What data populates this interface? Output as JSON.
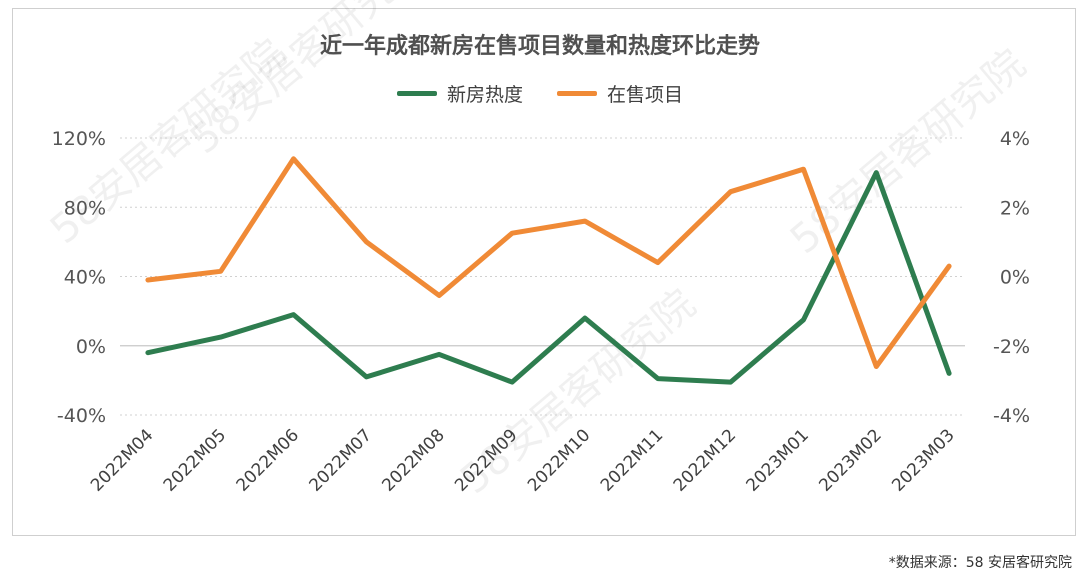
{
  "title": "近一年成都新房在售项目数量和热度环比走势",
  "source": "*数据来源：58 安居客研究院",
  "watermark": "58安居客研究院",
  "chart_data": {
    "type": "line",
    "categories": [
      "2022M04",
      "2022M05",
      "2022M06",
      "2022M07",
      "2022M08",
      "2022M09",
      "2022M10",
      "2022M11",
      "2022M12",
      "2023M01",
      "2023M02",
      "2023M03"
    ],
    "left_axis": {
      "ticks": [
        "120%",
        "80%",
        "40%",
        "0%",
        "-40%"
      ],
      "values": [
        120,
        80,
        40,
        0,
        -40
      ],
      "ylim": [
        -40,
        120
      ]
    },
    "right_axis": {
      "ticks": [
        "4%",
        "2%",
        "0%",
        "-2%",
        "-4%"
      ],
      "values": [
        4,
        2,
        0,
        -2,
        -4
      ],
      "ylim": [
        -4,
        4
      ]
    },
    "grid": true,
    "legend_position": "top-center",
    "series": [
      {
        "name": "新房热度",
        "axis": "left",
        "color": "#2e7d4f",
        "values": [
          -4,
          5,
          18,
          -18,
          -5,
          -21,
          16,
          -19,
          -21,
          15,
          100,
          -16
        ]
      },
      {
        "name": "在售项目",
        "axis": "right",
        "color": "#f08a36",
        "values": [
          -0.1,
          0.15,
          3.4,
          1.0,
          -0.55,
          1.25,
          1.6,
          0.4,
          2.45,
          3.1,
          -2.6,
          0.3
        ]
      }
    ]
  }
}
